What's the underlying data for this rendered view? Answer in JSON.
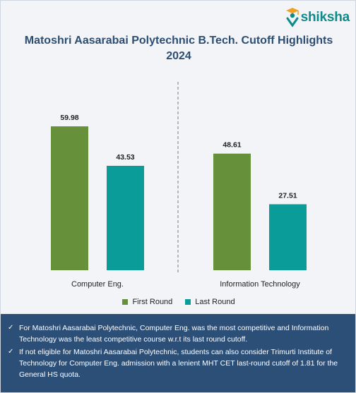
{
  "brand": {
    "name": "shiksha",
    "icon": "graduate-figure-icon"
  },
  "title": "Matoshri Aasarabai Polytechnic B.Tech. Cutoff Highlights 2024",
  "colors": {
    "first_round": "#66913a",
    "last_round": "#0a9c98",
    "notes_bg": "#2c4f78",
    "divider": "#7a7a7a"
  },
  "chart_data": {
    "type": "bar",
    "title": "Matoshri Aasarabai Polytechnic B.Tech. Cutoff Highlights 2024",
    "categories": [
      "Computer Eng.",
      "Information Technology"
    ],
    "series": [
      {
        "name": "First Round",
        "values": [
          59.98,
          48.61
        ]
      },
      {
        "name": "Last Round",
        "values": [
          43.53,
          27.51
        ]
      }
    ],
    "xlabel": "",
    "ylabel": "",
    "ylim": [
      0,
      80
    ],
    "grid": false,
    "legend_position": "bottom"
  },
  "notes": [
    "For Matoshri Aasarabai Polytechnic, Computer Eng. was the most competitive and Information Technology was the least competitive course w.r.t its last round cutoff.",
    "If not eligible for Matoshri Aasarabai Polytechnic, students can also consider Trimurti Institute of Technology for Computer Eng. admission with a lenient MHT CET last-round cutoff of 1.81 for the General HS quota."
  ]
}
